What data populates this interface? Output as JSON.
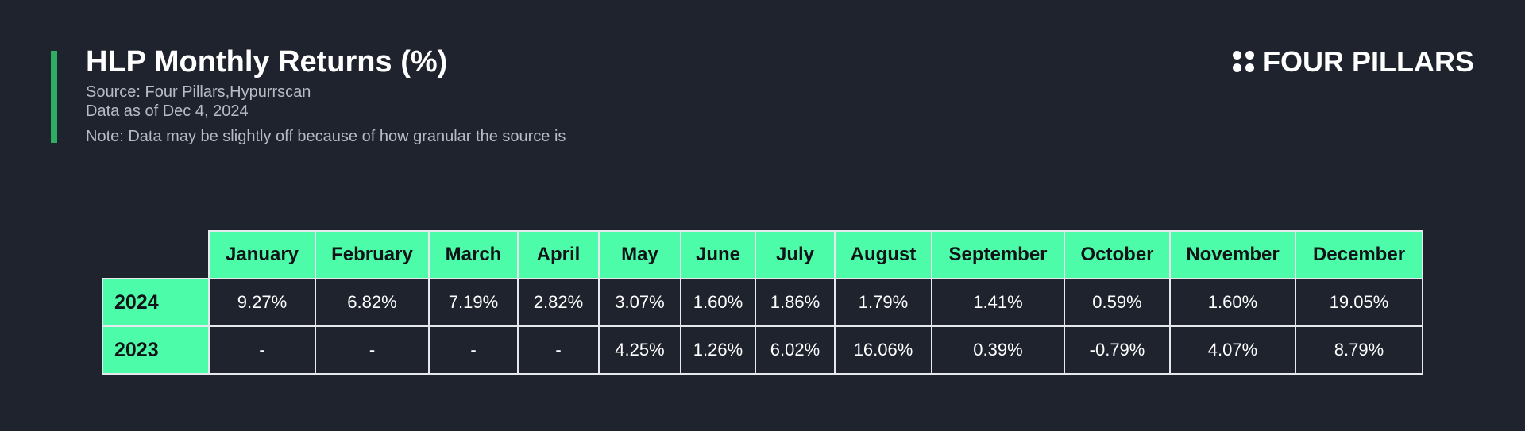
{
  "header": {
    "title": "HLP Monthly Returns (%)",
    "source": "Source: Four Pillars,Hypurrscan",
    "as_of": "Data as of Dec 4, 2024",
    "note": "Note: Data may be slightly off because of how granular the source is"
  },
  "brand": {
    "name": "FOUR PILLARS",
    "icon": "four-dots-icon"
  },
  "colors": {
    "background": "#1f232e",
    "header_cell": "#4dfca8",
    "accent_bar": "#2eae63",
    "grid_line": "#e6e8ee"
  },
  "chart_data": {
    "type": "table",
    "title": "HLP Monthly Returns (%)",
    "columns": [
      "January",
      "February",
      "March",
      "April",
      "May",
      "June",
      "July",
      "August",
      "September",
      "October",
      "November",
      "December"
    ],
    "rows": [
      {
        "label": "2024",
        "values": [
          "9.27%",
          "6.82%",
          "7.19%",
          "2.82%",
          "3.07%",
          "1.60%",
          "1.86%",
          "1.79%",
          "1.41%",
          "0.59%",
          "1.60%",
          "19.05%"
        ]
      },
      {
        "label": "2023",
        "values": [
          "-",
          "-",
          "-",
          "-",
          "4.25%",
          "1.26%",
          "6.02%",
          "16.06%",
          "0.39%",
          "-0.79%",
          "4.07%",
          "8.79%"
        ]
      }
    ]
  }
}
